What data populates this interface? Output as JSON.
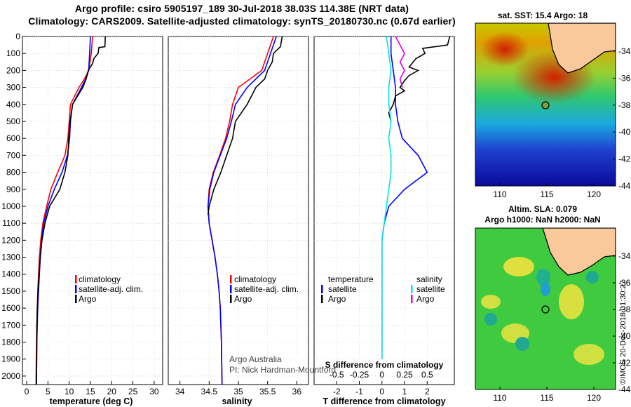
{
  "header": {
    "line1": "Argo profile: csiro 5905197_189 30-Jul-2018 38.03S 114.38E (NRT data)",
    "line2": "Climatology: CARS2009. Satellite-adjusted climatology: synTS_20180730.nc (0.67d earlier)"
  },
  "colors": {
    "climatology": "#ff0000",
    "satellite": "#0000ff",
    "argo": "#000000",
    "salinity_satellite": "#00e5e5",
    "salinity_argo": "#e000e0"
  },
  "depth_axis": {
    "ylim": [
      0,
      2050
    ],
    "ticks": [
      0,
      100,
      200,
      300,
      400,
      500,
      600,
      700,
      800,
      900,
      1000,
      1100,
      1200,
      1300,
      1400,
      1500,
      1600,
      1700,
      1800,
      1900,
      2000
    ]
  },
  "legend1": {
    "climatology": "climatology",
    "satellite": "satellite-adj. clim.",
    "argo": "Argo"
  },
  "legend2": {
    "climatology": "climatology",
    "satellite": "satellite-adj. clim.",
    "argo": "Argo"
  },
  "legend3": {
    "temp_title": "temperature",
    "temp_sat": "satellite",
    "temp_argo": "Argo",
    "sal_title": "salinity",
    "sal_sat": "satellite",
    "sal_argo": "Argo"
  },
  "credit": {
    "line1": "Argo Australia",
    "line2": "PI: Nick Hardman-Mountford"
  },
  "maps": {
    "sst_title": "sat. SST: 15.4 Argo: 18",
    "sla_title1": "Altim. SLA: 0.079",
    "sla_title2": "Argo h1000: NaN h2000: NaN",
    "lat_ticks": [
      "-34",
      "-36",
      "-38",
      "-40",
      "-42",
      "-44"
    ],
    "lon_ticks": [
      "110",
      "115",
      "120"
    ],
    "imos": "©IMOS 20-Dec-2018 01:30:27"
  },
  "chart_data": [
    {
      "type": "line",
      "xlabel": "temperature (deg C)",
      "xlim": [
        -1,
        32
      ],
      "xticks": [
        0,
        5,
        10,
        15,
        20,
        25,
        30
      ],
      "ylim": [
        0,
        2050
      ],
      "series": [
        {
          "name": "climatology",
          "x": [
            15.5,
            15.2,
            14.6,
            13.6,
            12.3,
            10.3,
            10.0,
            9.7,
            9.0,
            7.3,
            5.7,
            4.7,
            3.8,
            3.3,
            3.0,
            2.8,
            2.6,
            2.5,
            2.4,
            2.3,
            2.2
          ],
          "y": [
            0,
            100,
            200,
            250,
            300,
            400,
            500,
            600,
            700,
            800,
            900,
            1000,
            1100,
            1200,
            1300,
            1400,
            1500,
            1600,
            1700,
            1800,
            2050
          ]
        },
        {
          "name": "satellite-adj. clim.",
          "x": [
            15.0,
            14.8,
            14.6,
            13.9,
            12.9,
            10.8,
            10.3,
            10.1,
            9.6,
            8.3,
            6.5,
            5.0,
            4.0,
            3.5,
            3.2,
            3.0,
            2.8,
            2.6,
            2.5,
            2.4,
            2.3
          ],
          "y": [
            0,
            100,
            200,
            250,
            300,
            400,
            500,
            600,
            700,
            800,
            900,
            1000,
            1100,
            1200,
            1300,
            1400,
            1500,
            1600,
            1700,
            1800,
            2050
          ]
        },
        {
          "name": "Argo",
          "x": [
            18.5,
            18.4,
            17.0,
            16.8,
            15.8,
            15.5,
            14.5,
            14.0,
            13.2,
            10.8,
            10.2,
            9.9,
            9.7,
            9.0,
            7.8,
            6.6,
            5.4,
            4.3,
            3.6,
            3.2,
            2.9,
            2.7,
            2.5,
            2.4,
            2.3
          ],
          "y": [
            0,
            60,
            65,
            100,
            130,
            160,
            200,
            250,
            300,
            400,
            500,
            600,
            700,
            800,
            900,
            950,
            1000,
            1100,
            1200,
            1300,
            1400,
            1500,
            1600,
            1700,
            2050
          ]
        }
      ]
    },
    {
      "type": "line",
      "xlabel": "salinity",
      "xlim": [
        33.8,
        36.2
      ],
      "xticks": [
        34,
        34.5,
        35,
        35.5,
        36
      ],
      "ylim": [
        0,
        2050
      ],
      "series": [
        {
          "name": "climatology",
          "x": [
            35.6,
            35.5,
            35.4,
            35.2,
            35.0,
            34.9,
            34.85,
            34.78,
            34.68,
            34.57,
            34.5,
            34.48,
            34.5,
            34.55,
            34.6,
            34.64,
            34.67,
            34.69,
            34.7,
            34.71,
            34.72
          ],
          "y": [
            0,
            100,
            200,
            250,
            300,
            400,
            500,
            600,
            700,
            800,
            900,
            1000,
            1100,
            1200,
            1300,
            1400,
            1500,
            1600,
            1700,
            1800,
            2050
          ]
        },
        {
          "name": "satellite-adj. clim.",
          "x": [
            35.65,
            35.55,
            35.45,
            35.3,
            35.15,
            34.95,
            34.88,
            34.8,
            34.69,
            34.58,
            34.51,
            34.48,
            34.5,
            34.55,
            34.6,
            34.64,
            34.67,
            34.69,
            34.7,
            34.71,
            34.72
          ],
          "y": [
            0,
            100,
            200,
            250,
            300,
            400,
            500,
            600,
            700,
            800,
            900,
            1000,
            1100,
            1200,
            1300,
            1400,
            1500,
            1600,
            1700,
            1800,
            2050
          ]
        },
        {
          "name": "Argo",
          "x": [
            35.75,
            35.72,
            35.6,
            35.58,
            35.5,
            35.45,
            35.3,
            35.15,
            34.95,
            34.9,
            34.8,
            34.7,
            34.58,
            34.5,
            34.48
          ],
          "y": [
            0,
            60,
            100,
            150,
            200,
            250,
            300,
            400,
            500,
            600,
            700,
            800,
            900,
            1000,
            1050
          ]
        }
      ]
    },
    {
      "type": "line",
      "xlabel": "T difference from climatology",
      "x2label": "S difference from climatology",
      "xlim": [
        -3,
        3.2
      ],
      "xticks": [
        -2,
        -1,
        0,
        1,
        2
      ],
      "x2ticks": [
        "-0.5",
        "-0.25",
        "0",
        "0.25",
        "0.5"
      ],
      "ylim": [
        0,
        2050
      ],
      "series": [
        {
          "name": "temperature satellite",
          "x": [
            0.4,
            0.4,
            0.5,
            0.6,
            0.6,
            0.7,
            0.9,
            1.6,
            2.0,
            1.0,
            0.3,
            0.1,
            0.0,
            0.0,
            0.0,
            0.0
          ],
          "y": [
            0,
            100,
            200,
            300,
            400,
            500,
            600,
            700,
            800,
            900,
            1000,
            1100,
            1200,
            1300,
            1500,
            1900
          ]
        },
        {
          "name": "temperature Argo",
          "x": [
            3.0,
            2.9,
            1.8,
            1.9,
            1.5,
            1.2,
            1.6,
            1.2,
            1.0,
            0.8,
            1.0,
            0.6,
            0.5,
            0.3,
            0.4
          ],
          "y": [
            0,
            50,
            70,
            100,
            130,
            180,
            200,
            230,
            260,
            300,
            320,
            350,
            400,
            450,
            500
          ]
        },
        {
          "name": "salinity satellite",
          "x": [
            0.2,
            0.3,
            0.4,
            0.3,
            0.3,
            0.4,
            0.3,
            0.4,
            0.4,
            0.3,
            0.2,
            0.1,
            0.0,
            0.0,
            0.0
          ],
          "y": [
            0,
            100,
            200,
            300,
            400,
            500,
            600,
            700,
            800,
            900,
            1000,
            1100,
            1200,
            1400,
            1900
          ]
        },
        {
          "name": "salinity Argo",
          "x": [
            0.6,
            0.8,
            1.0,
            0.8,
            1.0,
            0.8,
            0.9
          ],
          "y": [
            0,
            50,
            100,
            150,
            200,
            250,
            300
          ]
        }
      ]
    }
  ]
}
